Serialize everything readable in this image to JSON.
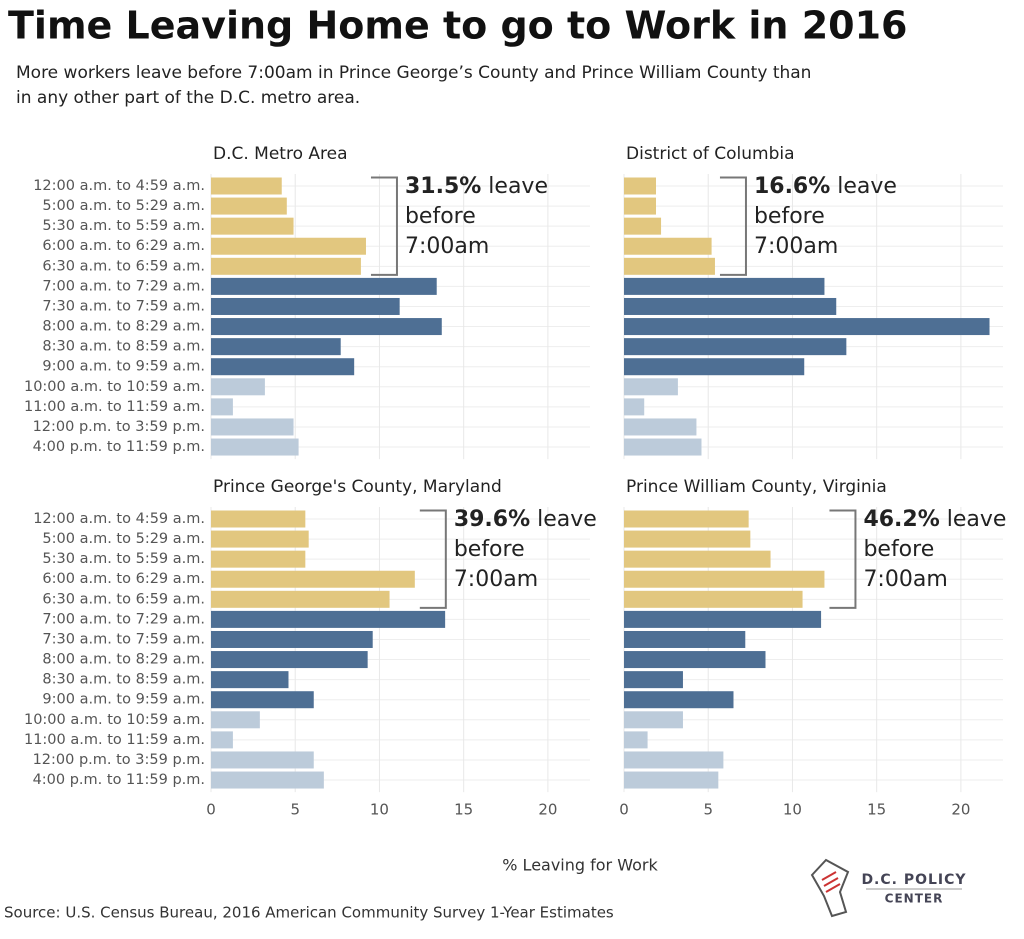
{
  "title": "Time Leaving Home to go to Work in 2016",
  "subtitle": [
    "More workers leave before 7:00am in Prince George’s County and Prince William County than",
    "in any other part of the D.C. metro area."
  ],
  "x_label": "% Leaving for Work",
  "source": "Source: U.S. Census Bureau, 2016 American Community Survey 1-Year Estimates",
  "logo": {
    "line1": "D.C. POLICY",
    "line2": "CENTER"
  },
  "chart_data": [
    {
      "type": "bar",
      "orientation": "horizontal",
      "title": "D.C. Metro Area",
      "categories": [
        "12:00 a.m. to 4:59 a.m.",
        "5:00 a.m. to 5:29 a.m.",
        "5:30 a.m. to 5:59 a.m.",
        "6:00 a.m. to 6:29 a.m.",
        "6:30 a.m. to 6:59 a.m.",
        "7:00 a.m. to 7:29 a.m.",
        "7:30 a.m. to 7:59 a.m.",
        "8:00 a.m. to 8:29 a.m.",
        "8:30 a.m. to 8:59 a.m.",
        "9:00 a.m. to 9:59 a.m.",
        "10:00 a.m. to 10:59 a.m.",
        "11:00 a.m. to 11:59 a.m.",
        "12:00 p.m. to 3:59 p.m.",
        "4:00 p.m. to 11:59 p.m."
      ],
      "values": [
        4.2,
        4.5,
        4.9,
        9.2,
        8.9,
        13.4,
        11.2,
        13.7,
        7.7,
        8.5,
        3.2,
        1.3,
        4.9,
        5.2
      ],
      "colors": [
        "#e2c77f",
        "#e2c77f",
        "#e2c77f",
        "#e2c77f",
        "#e2c77f",
        "#4e6f94",
        "#4e6f94",
        "#4e6f94",
        "#4e6f94",
        "#4e6f94",
        "#bccbda",
        "#bccbda",
        "#bccbda",
        "#bccbda"
      ],
      "xlim": [
        0,
        22.5
      ],
      "xticks": [
        0,
        5,
        10,
        15,
        20
      ],
      "grid": true,
      "annotation": {
        "bold": "31.5%",
        "lines": [
          " leave",
          "before",
          "7:00am"
        ]
      }
    },
    {
      "type": "bar",
      "orientation": "horizontal",
      "title": "District of Columbia",
      "values": [
        1.9,
        1.9,
        2.2,
        5.2,
        5.4,
        11.9,
        12.6,
        21.7,
        13.2,
        10.7,
        3.2,
        1.2,
        4.3,
        4.6
      ],
      "colors": [
        "#e2c77f",
        "#e2c77f",
        "#e2c77f",
        "#e2c77f",
        "#e2c77f",
        "#4e6f94",
        "#4e6f94",
        "#4e6f94",
        "#4e6f94",
        "#4e6f94",
        "#bccbda",
        "#bccbda",
        "#bccbda",
        "#bccbda"
      ],
      "xlim": [
        0,
        22.5
      ],
      "xticks": [
        0,
        5,
        10,
        15,
        20
      ],
      "grid": true,
      "annotation": {
        "bold": "16.6%",
        "lines": [
          " leave",
          "before",
          "7:00am"
        ]
      }
    },
    {
      "type": "bar",
      "orientation": "horizontal",
      "title": "Prince George's County, Maryland",
      "categories": [
        "12:00 a.m. to 4:59 a.m.",
        "5:00 a.m. to 5:29 a.m.",
        "5:30 a.m. to 5:59 a.m.",
        "6:00 a.m. to 6:29 a.m.",
        "6:30 a.m. to 6:59 a.m.",
        "7:00 a.m. to 7:29 a.m.",
        "7:30 a.m. to 7:59 a.m.",
        "8:00 a.m. to 8:29 a.m.",
        "8:30 a.m. to 8:59 a.m.",
        "9:00 a.m. to 9:59 a.m.",
        "10:00 a.m. to 10:59 a.m.",
        "11:00 a.m. to 11:59 a.m.",
        "12:00 p.m. to 3:59 p.m.",
        "4:00 p.m. to 11:59 p.m."
      ],
      "values": [
        5.6,
        5.8,
        5.6,
        12.1,
        10.6,
        13.9,
        9.6,
        9.3,
        4.6,
        6.1,
        2.9,
        1.3,
        6.1,
        6.7
      ],
      "colors": [
        "#e2c77f",
        "#e2c77f",
        "#e2c77f",
        "#e2c77f",
        "#e2c77f",
        "#4e6f94",
        "#4e6f94",
        "#4e6f94",
        "#4e6f94",
        "#4e6f94",
        "#bccbda",
        "#bccbda",
        "#bccbda",
        "#bccbda"
      ],
      "xlim": [
        0,
        22.5
      ],
      "xticks": [
        0,
        5,
        10,
        15,
        20
      ],
      "grid": true,
      "annotation": {
        "bold": "39.6%",
        "lines": [
          " leave",
          "before",
          "7:00am"
        ]
      }
    },
    {
      "type": "bar",
      "orientation": "horizontal",
      "title": "Prince William County, Virginia",
      "values": [
        7.4,
        7.5,
        8.7,
        11.9,
        10.6,
        11.7,
        7.2,
        8.4,
        3.5,
        6.5,
        3.5,
        1.4,
        5.9,
        5.6
      ],
      "colors": [
        "#e2c77f",
        "#e2c77f",
        "#e2c77f",
        "#e2c77f",
        "#e2c77f",
        "#4e6f94",
        "#4e6f94",
        "#4e6f94",
        "#4e6f94",
        "#4e6f94",
        "#bccbda",
        "#bccbda",
        "#bccbda",
        "#bccbda"
      ],
      "xlim": [
        0,
        22.5
      ],
      "xticks": [
        0,
        5,
        10,
        15,
        20
      ],
      "grid": true,
      "annotation": {
        "bold": "46.2%",
        "lines": [
          " leave",
          "before",
          "7:00am"
        ]
      }
    }
  ]
}
